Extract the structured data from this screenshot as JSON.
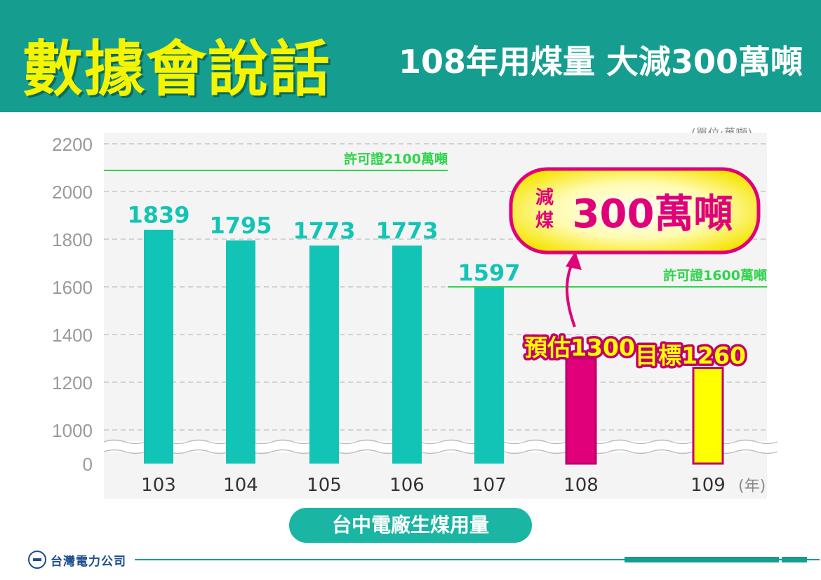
{
  "header": {
    "title": "數據會說話",
    "subtitle": "108年用煤量 大減300萬噸"
  },
  "unit_note": "(單位:萬噸)",
  "x_axis_name": "台中電廠生煤用量",
  "x_unit": "(年)",
  "reduction_badge": {
    "prefix_top": "減",
    "prefix_bottom": "煤",
    "text": "300萬噸"
  },
  "permit_lines": [
    {
      "label": "許可證2100萬噸",
      "value": 2100
    },
    {
      "label": "許可證1600萬噸",
      "value": 1600
    }
  ],
  "colors": {
    "header": "#159e8f",
    "bar": "#12c4b6",
    "estimate": "#e0007a",
    "target": "#ffff00",
    "permit": "#2fd44c",
    "title": "#f5f500"
  },
  "chart_data": {
    "type": "bar",
    "categories": [
      "103",
      "104",
      "105",
      "106",
      "107",
      "108",
      "109"
    ],
    "values": [
      1839,
      1795,
      1773,
      1773,
      1597,
      1300,
      1260
    ],
    "bar_labels": [
      "1839",
      "1795",
      "1773",
      "1773",
      "1597",
      "預估1300",
      "目標1260"
    ],
    "bar_kinds": [
      "actual",
      "actual",
      "actual",
      "actual",
      "actual",
      "estimate",
      "target"
    ],
    "yticks": [
      0,
      1000,
      1200,
      1400,
      1600,
      1800,
      2000,
      2200
    ],
    "ylim": [
      0,
      2200
    ],
    "axis_break": true,
    "grid": true
  }
}
